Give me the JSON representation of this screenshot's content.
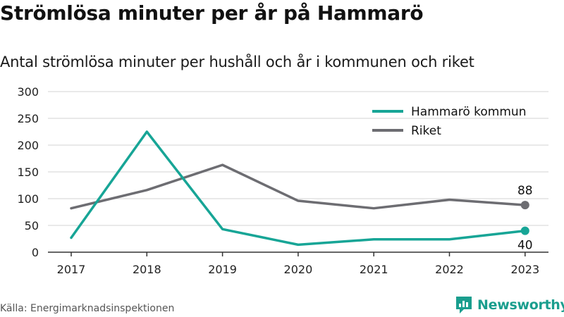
{
  "title": "Strömlösa minuter per år på Hammarö",
  "subtitle": "Antal strömlösa minuter per hushåll och år i kommunen och riket",
  "source": "Källa: Energimarknadsinspektionen",
  "brand": {
    "name": "Newsworthy",
    "icon": "newsworthy-logo-icon"
  },
  "colors": {
    "hammaro": "#17a596",
    "riket": "#6d6d72",
    "grid": "#dcdcdc",
    "axis": "#333333"
  },
  "chart_data": {
    "type": "line",
    "categories": [
      "2017",
      "2018",
      "2019",
      "2020",
      "2021",
      "2022",
      "2023"
    ],
    "ylim": [
      0,
      300
    ],
    "yticks": [
      0,
      50,
      100,
      150,
      200,
      250,
      300
    ],
    "grid": true,
    "legend_position": "top-right",
    "series": [
      {
        "name": "Hammarö kommun",
        "values": [
          27,
          225,
          43,
          14,
          24,
          24,
          40
        ],
        "color": "#17a596",
        "end_label": "40"
      },
      {
        "name": "Riket",
        "values": [
          82,
          116,
          163,
          96,
          82,
          98,
          88
        ],
        "color": "#6d6d72",
        "end_label": "88"
      }
    ]
  }
}
